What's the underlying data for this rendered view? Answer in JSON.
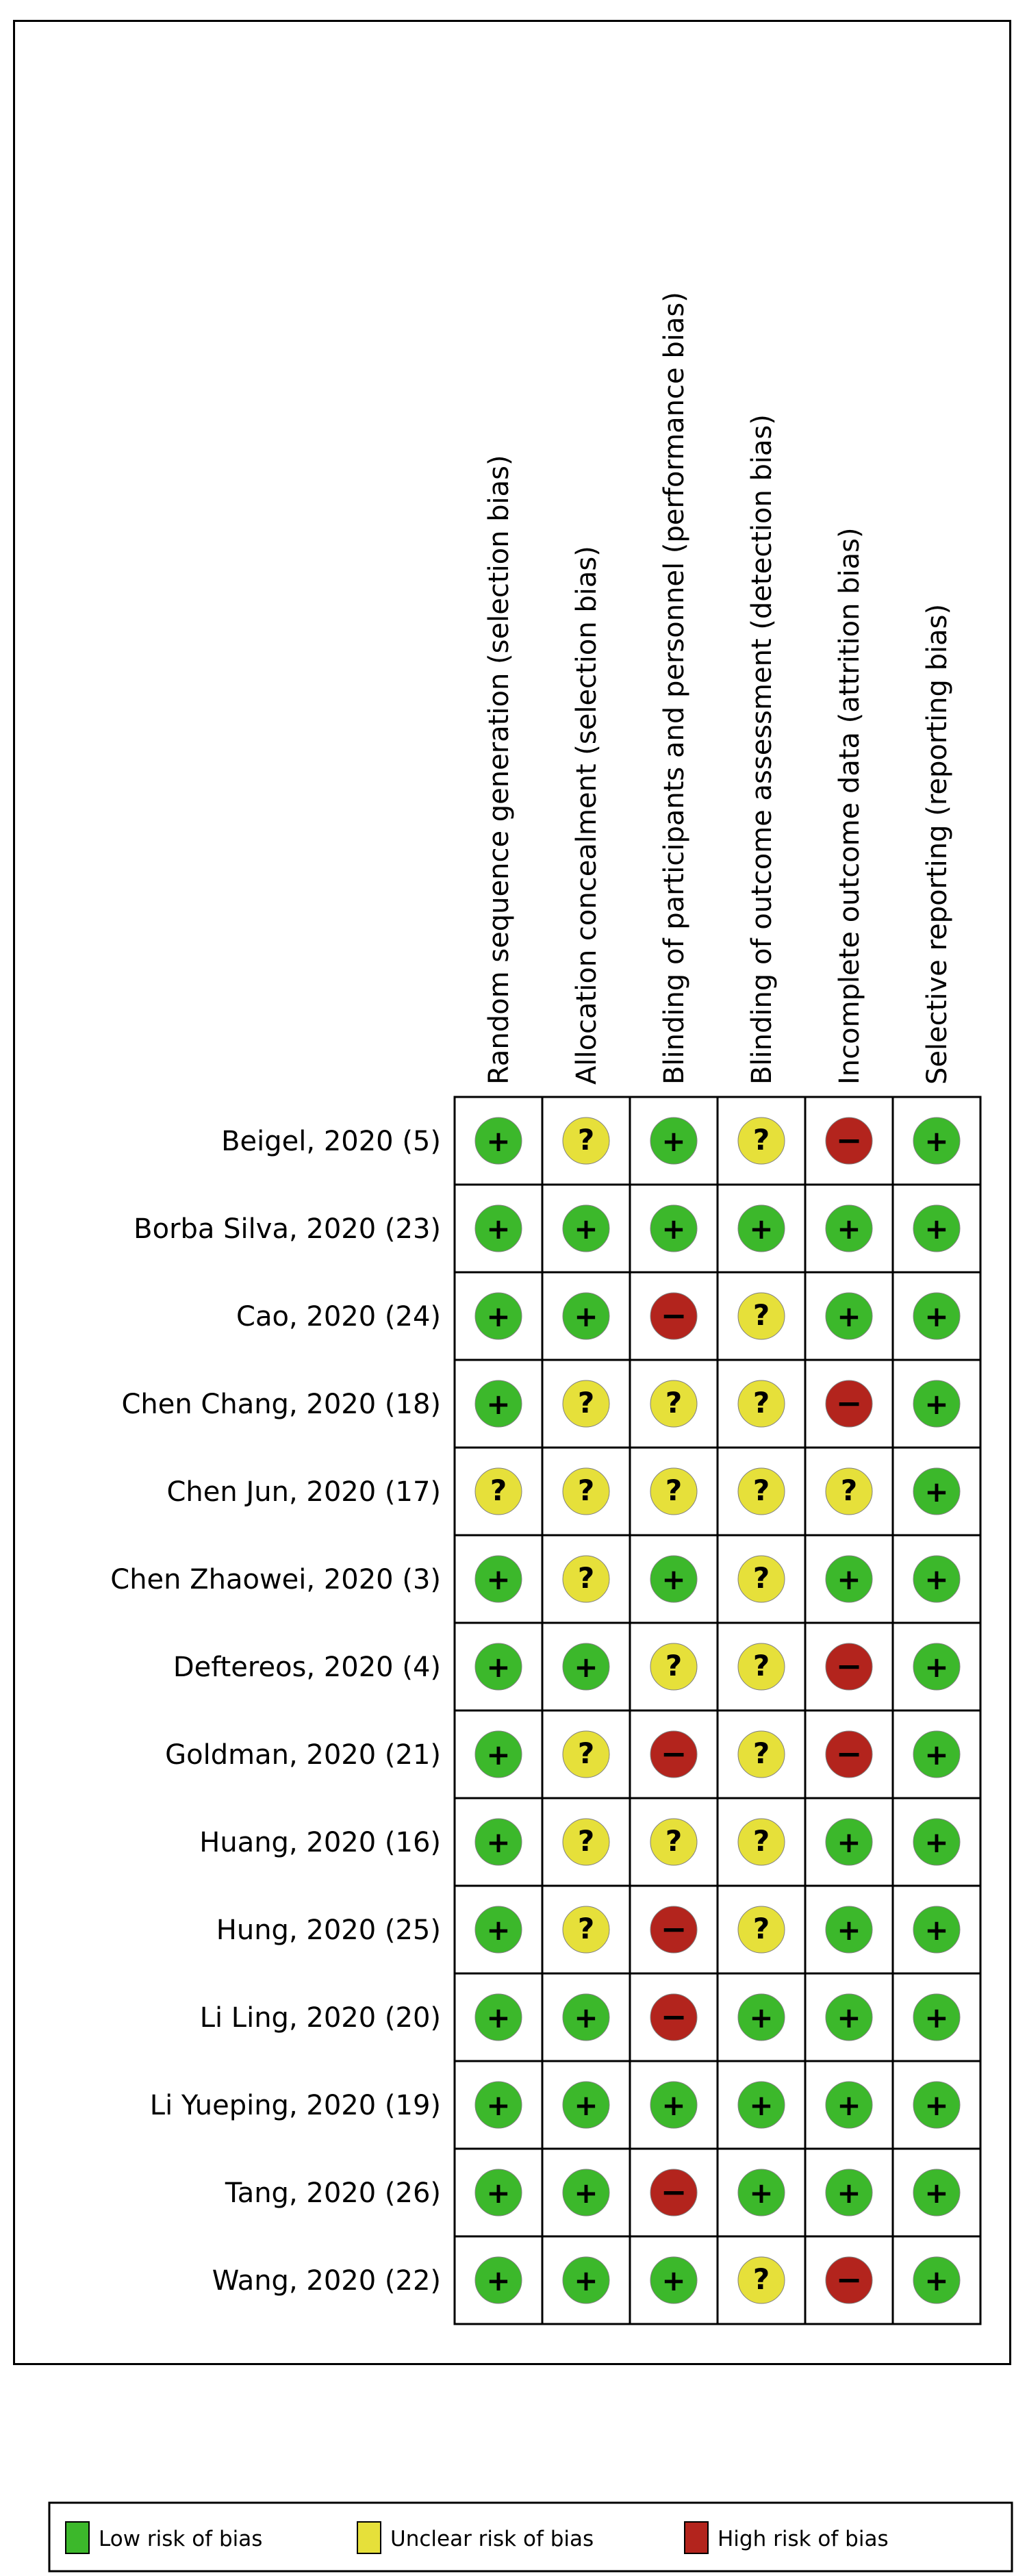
{
  "colors": {
    "low": "#3cb82b",
    "unclear": "#e6e03a",
    "high": "#b3241d"
  },
  "domains": [
    "Random sequence generation (selection bias)",
    "Allocation concealment (selection bias)",
    "Blinding of participants and personnel (performance bias)",
    "Blinding of outcome assessment (detection bias)",
    "Incomplete outcome data (attrition bias)",
    "Selective reporting (reporting bias)"
  ],
  "studies": [
    {
      "name": "Beigel, 2020 (5)",
      "judgements": [
        "low",
        "unclear",
        "low",
        "unclear",
        "high",
        "low"
      ]
    },
    {
      "name": "Borba Silva, 2020 (23)",
      "judgements": [
        "low",
        "low",
        "low",
        "low",
        "low",
        "low"
      ]
    },
    {
      "name": "Cao, 2020 (24)",
      "judgements": [
        "low",
        "low",
        "high",
        "unclear",
        "low",
        "low"
      ]
    },
    {
      "name": "Chen Chang, 2020 (18)",
      "judgements": [
        "low",
        "unclear",
        "unclear",
        "unclear",
        "high",
        "low"
      ]
    },
    {
      "name": "Chen Jun, 2020 (17)",
      "judgements": [
        "unclear",
        "unclear",
        "unclear",
        "unclear",
        "unclear",
        "low"
      ]
    },
    {
      "name": "Chen Zhaowei, 2020 (3)",
      "judgements": [
        "low",
        "unclear",
        "low",
        "unclear",
        "low",
        "low"
      ]
    },
    {
      "name": "Deftereos, 2020 (4)",
      "judgements": [
        "low",
        "low",
        "unclear",
        "unclear",
        "high",
        "low"
      ]
    },
    {
      "name": "Goldman, 2020 (21)",
      "judgements": [
        "low",
        "unclear",
        "high",
        "unclear",
        "high",
        "low"
      ]
    },
    {
      "name": "Huang, 2020 (16)",
      "judgements": [
        "low",
        "unclear",
        "unclear",
        "unclear",
        "low",
        "low"
      ]
    },
    {
      "name": "Hung, 2020 (25)",
      "judgements": [
        "low",
        "unclear",
        "high",
        "unclear",
        "low",
        "low"
      ]
    },
    {
      "name": "Li Ling, 2020 (20)",
      "judgements": [
        "low",
        "low",
        "high",
        "low",
        "low",
        "low"
      ]
    },
    {
      "name": "Li Yueping, 2020 (19)",
      "judgements": [
        "low",
        "low",
        "low",
        "low",
        "low",
        "low"
      ]
    },
    {
      "name": "Tang, 2020 (26)",
      "judgements": [
        "low",
        "low",
        "high",
        "low",
        "low",
        "low"
      ]
    },
    {
      "name": "Wang, 2020 (22)",
      "judgements": [
        "low",
        "low",
        "low",
        "unclear",
        "high",
        "low"
      ]
    }
  ],
  "symbols": {
    "low": "+",
    "unclear": "?",
    "high": "−"
  },
  "legend": [
    {
      "key": "low",
      "label": "Low risk of bias"
    },
    {
      "key": "unclear",
      "label": "Unclear risk of bias"
    },
    {
      "key": "high",
      "label": "High risk of bias"
    }
  ]
}
